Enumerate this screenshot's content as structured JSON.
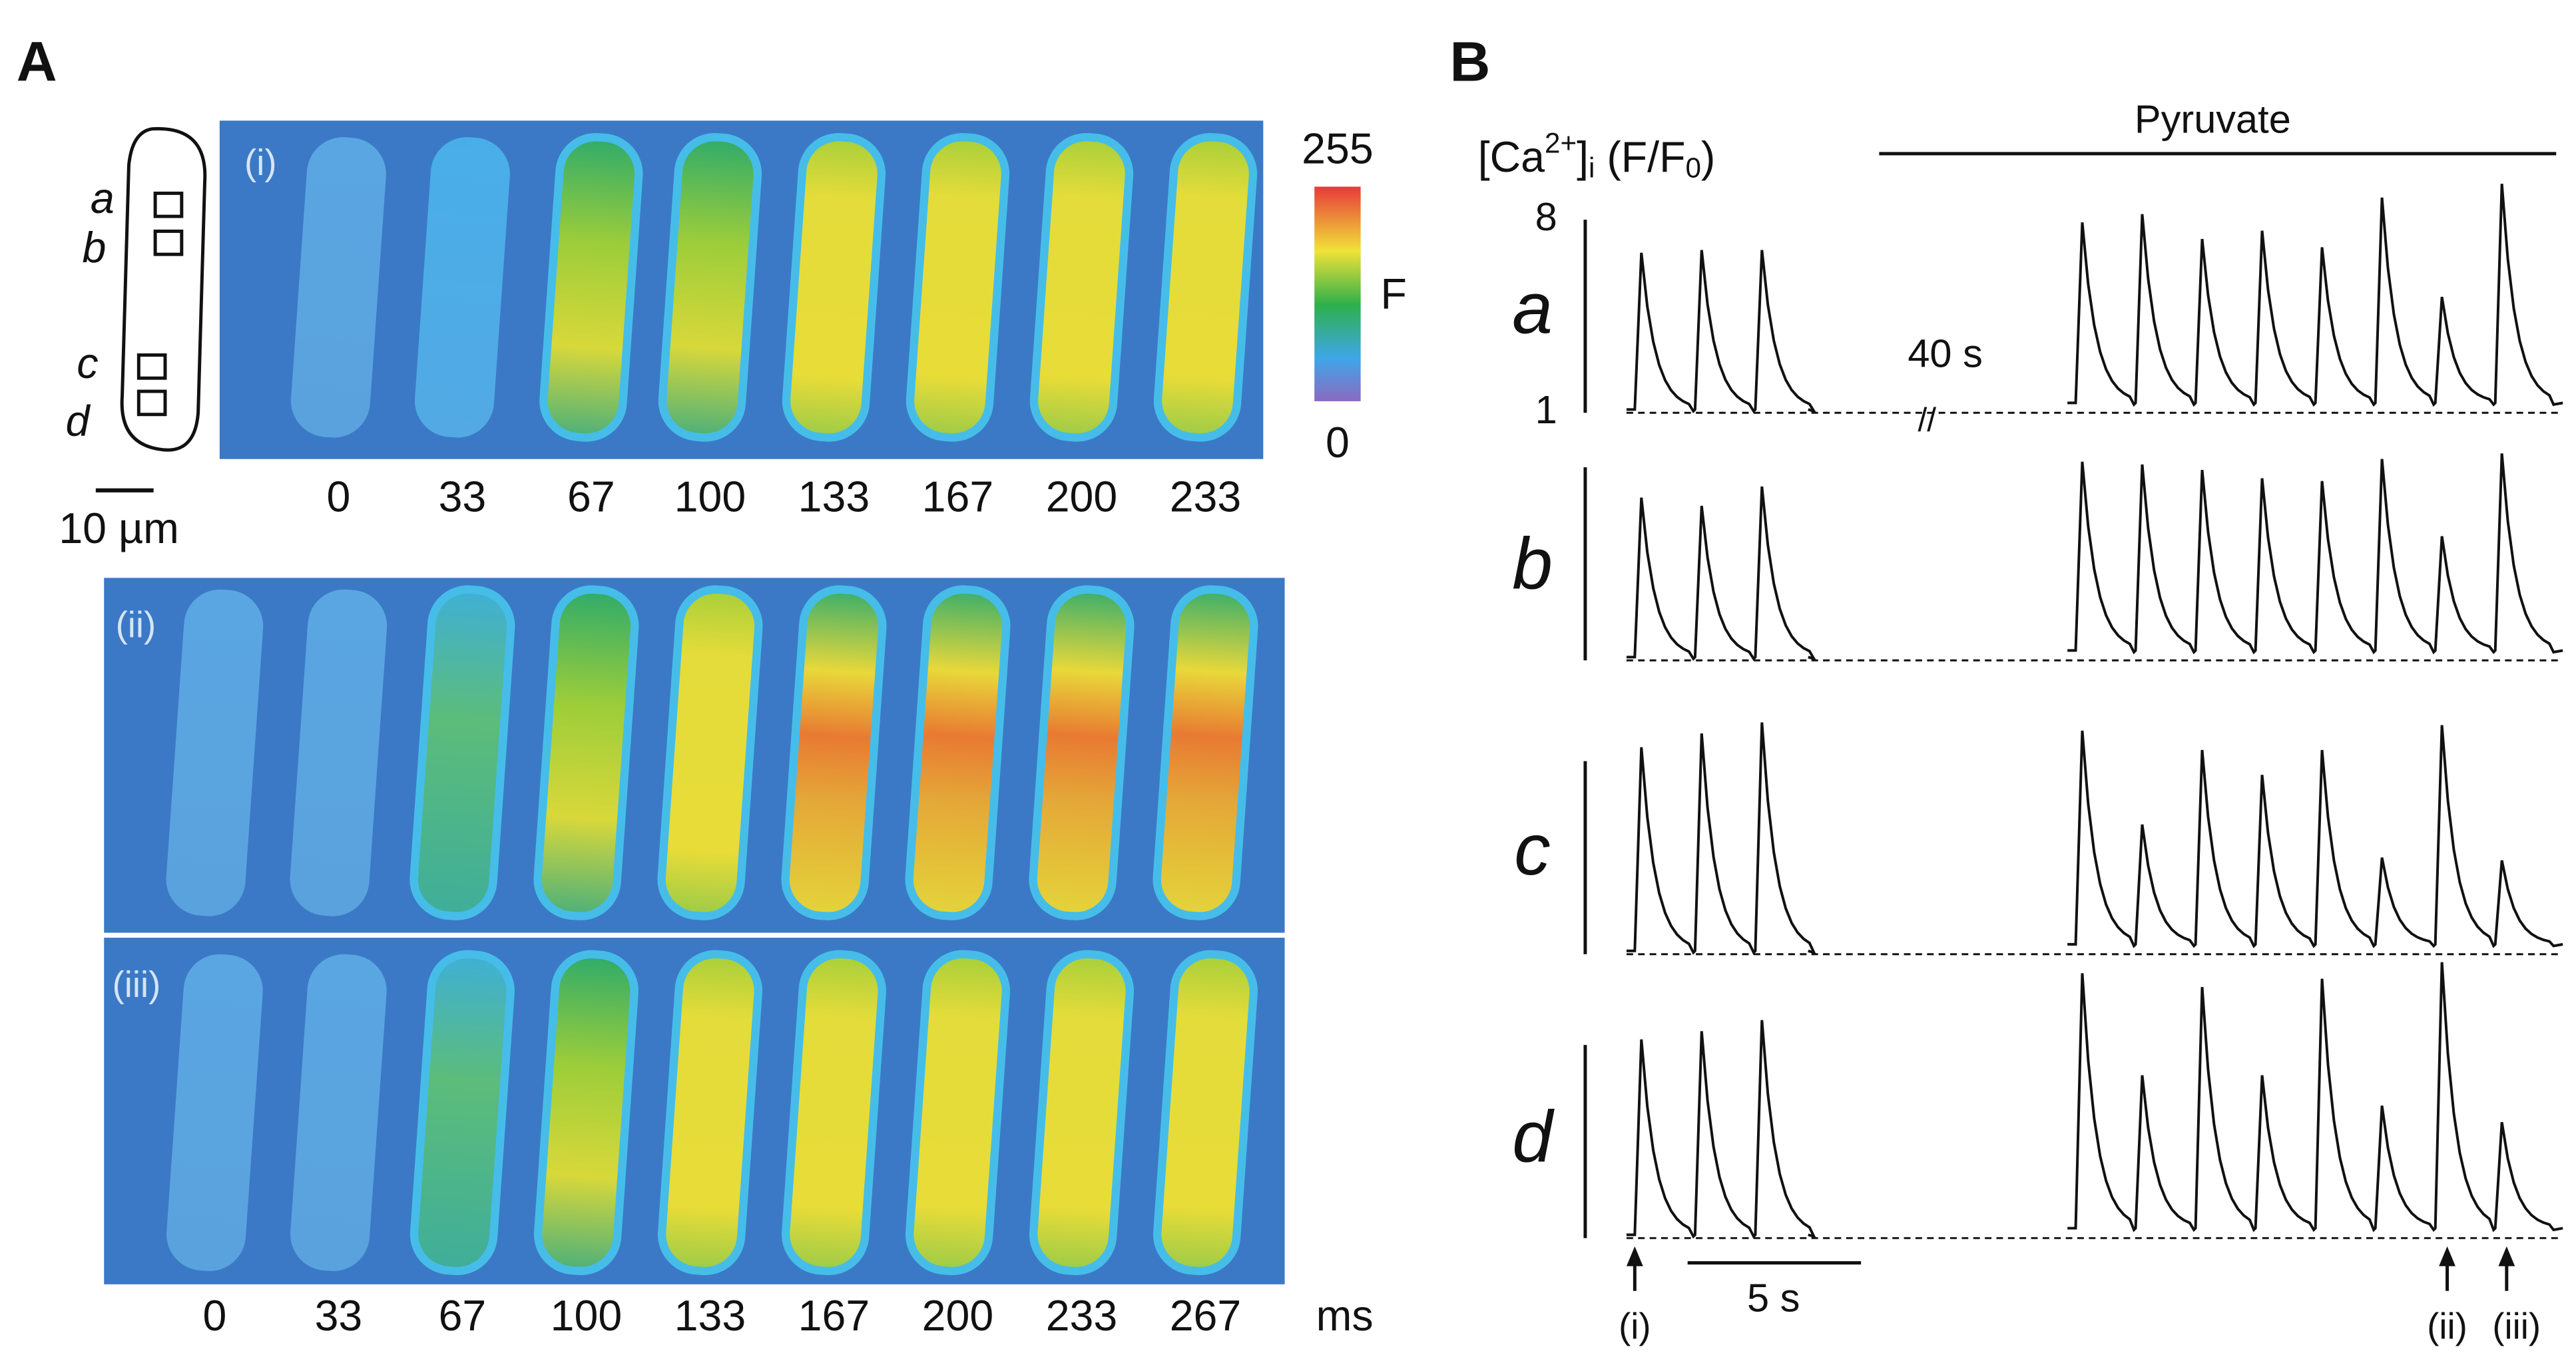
{
  "panel_a": {
    "label": "A",
    "sketch": {
      "regions": [
        "a",
        "b",
        "c",
        "d"
      ],
      "scale_bar": "10 µm"
    },
    "colorbar": {
      "max": "255",
      "min": "0",
      "label": "F"
    },
    "rows": [
      {
        "label": "(i)",
        "times": [
          0,
          33,
          67,
          100,
          133,
          167,
          200,
          233
        ]
      },
      {
        "label": "(ii)"
      },
      {
        "label": "(iii)",
        "times": [
          0,
          33,
          67,
          100,
          133,
          167,
          200,
          233,
          267
        ]
      }
    ],
    "unit": "ms"
  },
  "panel_b": {
    "label": "B",
    "ylabel_parts": [
      "[Ca",
      "2+",
      "]",
      "i",
      " (F/F",
      "0",
      ")"
    ],
    "treatment": "Pyruvate",
    "gap": "40 s",
    "gap_mark": "//",
    "scale_bar": "5 s",
    "ylim": [
      1,
      8
    ],
    "yticks": [
      1,
      8
    ],
    "arrows": [
      "(i)",
      "(ii)",
      "(iii)"
    ],
    "traces": [
      {
        "name": "a",
        "pre": [
          6.8,
          6.9,
          6.9
        ],
        "post": [
          7.9,
          8.2,
          7.3,
          7.6,
          7.0,
          8.8,
          5.2,
          9.3
        ]
      },
      {
        "name": "b",
        "pre": [
          6.9,
          6.6,
          7.3
        ],
        "post": [
          8.2,
          8.1,
          7.9,
          7.6,
          7.5,
          8.3,
          5.5,
          8.5
        ]
      },
      {
        "name": "c",
        "pre": [
          8.5,
          9.0,
          9.4
        ],
        "post": [
          9.1,
          5.7,
          8.4,
          7.5,
          8.4,
          4.5,
          9.3,
          4.4
        ]
      },
      {
        "name": "d",
        "pre": [
          8.2,
          8.5,
          8.9
        ],
        "post": [
          10.6,
          6.9,
          10.1,
          6.9,
          10.4,
          5.8,
          11.0,
          5.2
        ]
      }
    ]
  }
}
